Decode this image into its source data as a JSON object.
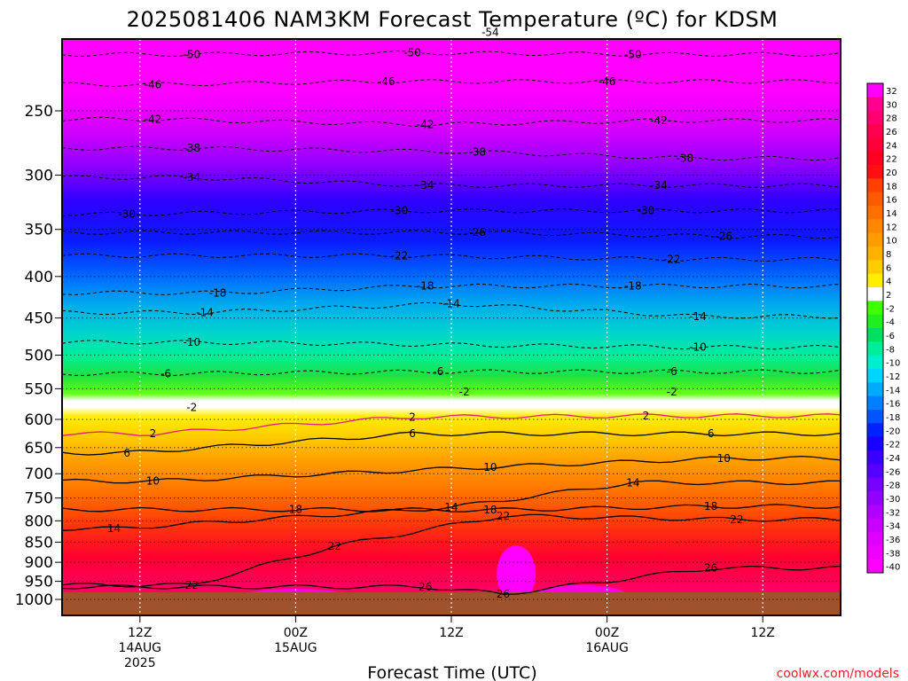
{
  "chart_data": {
    "type": "heatmap",
    "title": "2025081406 NAM3KM Forecast Temperature (ºC) for KDSM",
    "xlabel": "Forecast Time (UTC)",
    "ylabel": "",
    "credit": "coolwx.com/models",
    "y_axis": {
      "scale": "pressure",
      "ticks": [
        250,
        300,
        350,
        400,
        450,
        500,
        550,
        600,
        650,
        700,
        750,
        800,
        850,
        900,
        950,
        1000
      ]
    },
    "x_axis": {
      "range_hours": [
        0,
        60
      ],
      "ticks": [
        {
          "hour": 6,
          "lines": [
            "12Z",
            "14AUG",
            "2025"
          ]
        },
        {
          "hour": 18,
          "lines": [
            "00Z",
            "15AUG"
          ]
        },
        {
          "hour": 30,
          "lines": [
            "12Z"
          ]
        },
        {
          "hour": 42,
          "lines": [
            "00Z",
            "16AUG"
          ]
        },
        {
          "hour": 54,
          "lines": [
            "12Z"
          ]
        }
      ]
    },
    "colorbar": {
      "labels": [
        32,
        30,
        28,
        26,
        24,
        22,
        20,
        18,
        16,
        14,
        12,
        10,
        8,
        6,
        4,
        2,
        -2,
        -4,
        -6,
        -8,
        -10,
        -12,
        -14,
        -16,
        -18,
        -20,
        -22,
        -24,
        -26,
        -28,
        -30,
        -32,
        -34,
        -36,
        -38,
        -40
      ]
    },
    "surface_color": "#a0522d",
    "contour_color_below": "#000000",
    "contour_color_freezing": "#e0207a",
    "contours": [
      {
        "label": "-54",
        "pressure": 200,
        "hour": 33
      },
      {
        "label": "-50",
        "pressure": 213,
        "hour": 10
      },
      {
        "label": "-50",
        "pressure": 212,
        "hour": 27
      },
      {
        "label": "-50",
        "pressure": 213,
        "hour": 44
      },
      {
        "label": "-46",
        "pressure": 232,
        "hour": 7
      },
      {
        "label": "-46",
        "pressure": 230,
        "hour": 25
      },
      {
        "label": "-46",
        "pressure": 230,
        "hour": 42
      },
      {
        "label": "-42",
        "pressure": 256,
        "hour": 7
      },
      {
        "label": "-42",
        "pressure": 260,
        "hour": 28
      },
      {
        "label": "-42",
        "pressure": 257,
        "hour": 46
      },
      {
        "label": "-38",
        "pressure": 278,
        "hour": 10
      },
      {
        "label": "-38",
        "pressure": 281,
        "hour": 32
      },
      {
        "label": "-38",
        "pressure": 286,
        "hour": 48
      },
      {
        "label": "-34",
        "pressure": 302,
        "hour": 10
      },
      {
        "label": "-34",
        "pressure": 309,
        "hour": 28
      },
      {
        "label": "-34",
        "pressure": 309,
        "hour": 46
      },
      {
        "label": "-30",
        "pressure": 335,
        "hour": 5
      },
      {
        "label": "-30",
        "pressure": 332,
        "hour": 26
      },
      {
        "label": "-30",
        "pressure": 332,
        "hour": 45
      },
      {
        "label": "-26",
        "pressure": 353,
        "hour": 32
      },
      {
        "label": "-26",
        "pressure": 357,
        "hour": 51
      },
      {
        "label": "-22",
        "pressure": 377,
        "hour": 26
      },
      {
        "label": "-22",
        "pressure": 381,
        "hour": 47
      },
      {
        "label": "-18",
        "pressure": 419,
        "hour": 12
      },
      {
        "label": "-18",
        "pressure": 411,
        "hour": 28
      },
      {
        "label": "-18",
        "pressure": 411,
        "hour": 44
      },
      {
        "label": "-14",
        "pressure": 443,
        "hour": 11
      },
      {
        "label": "-14",
        "pressure": 432,
        "hour": 30
      },
      {
        "label": "-14",
        "pressure": 448,
        "hour": 49
      },
      {
        "label": "-10",
        "pressure": 482,
        "hour": 10
      },
      {
        "label": "-10",
        "pressure": 489,
        "hour": 49
      },
      {
        "label": "-6",
        "pressure": 527,
        "hour": 8
      },
      {
        "label": "-6",
        "pressure": 524,
        "hour": 29
      },
      {
        "label": "-6",
        "pressure": 524,
        "hour": 47
      },
      {
        "label": "-2",
        "pressure": 580,
        "hour": 10
      },
      {
        "label": "-2",
        "pressure": 555,
        "hour": 31
      },
      {
        "label": "-2",
        "pressure": 555,
        "hour": 47
      },
      {
        "label": "2",
        "pressure": 596,
        "hour": 27
      },
      {
        "label": "2",
        "pressure": 594,
        "hour": 45
      },
      {
        "label": "2",
        "pressure": 625,
        "hour": 7
      },
      {
        "label": "6",
        "pressure": 625,
        "hour": 27
      },
      {
        "label": "6",
        "pressure": 625,
        "hour": 50
      },
      {
        "label": "6",
        "pressure": 660,
        "hour": 5
      },
      {
        "label": "10",
        "pressure": 687,
        "hour": 33
      },
      {
        "label": "10",
        "pressure": 670,
        "hour": 51
      },
      {
        "label": "10",
        "pressure": 715,
        "hour": 7
      },
      {
        "label": "14",
        "pressure": 718,
        "hour": 44
      },
      {
        "label": "14",
        "pressure": 770,
        "hour": 30
      },
      {
        "label": "14",
        "pressure": 818,
        "hour": 4
      },
      {
        "label": "18",
        "pressure": 768,
        "hour": 50
      },
      {
        "label": "18",
        "pressure": 776,
        "hour": 33
      },
      {
        "label": "18",
        "pressure": 775,
        "hour": 18
      },
      {
        "label": "22",
        "pressure": 789,
        "hour": 34
      },
      {
        "label": "22",
        "pressure": 797,
        "hour": 52
      },
      {
        "label": "22",
        "pressure": 860,
        "hour": 21
      },
      {
        "label": "22",
        "pressure": 960,
        "hour": 10
      },
      {
        "label": "26",
        "pressure": 915,
        "hour": 50
      },
      {
        "label": "26",
        "pressure": 965,
        "hour": 28
      },
      {
        "label": "26",
        "pressure": 985,
        "hour": 34
      }
    ]
  }
}
